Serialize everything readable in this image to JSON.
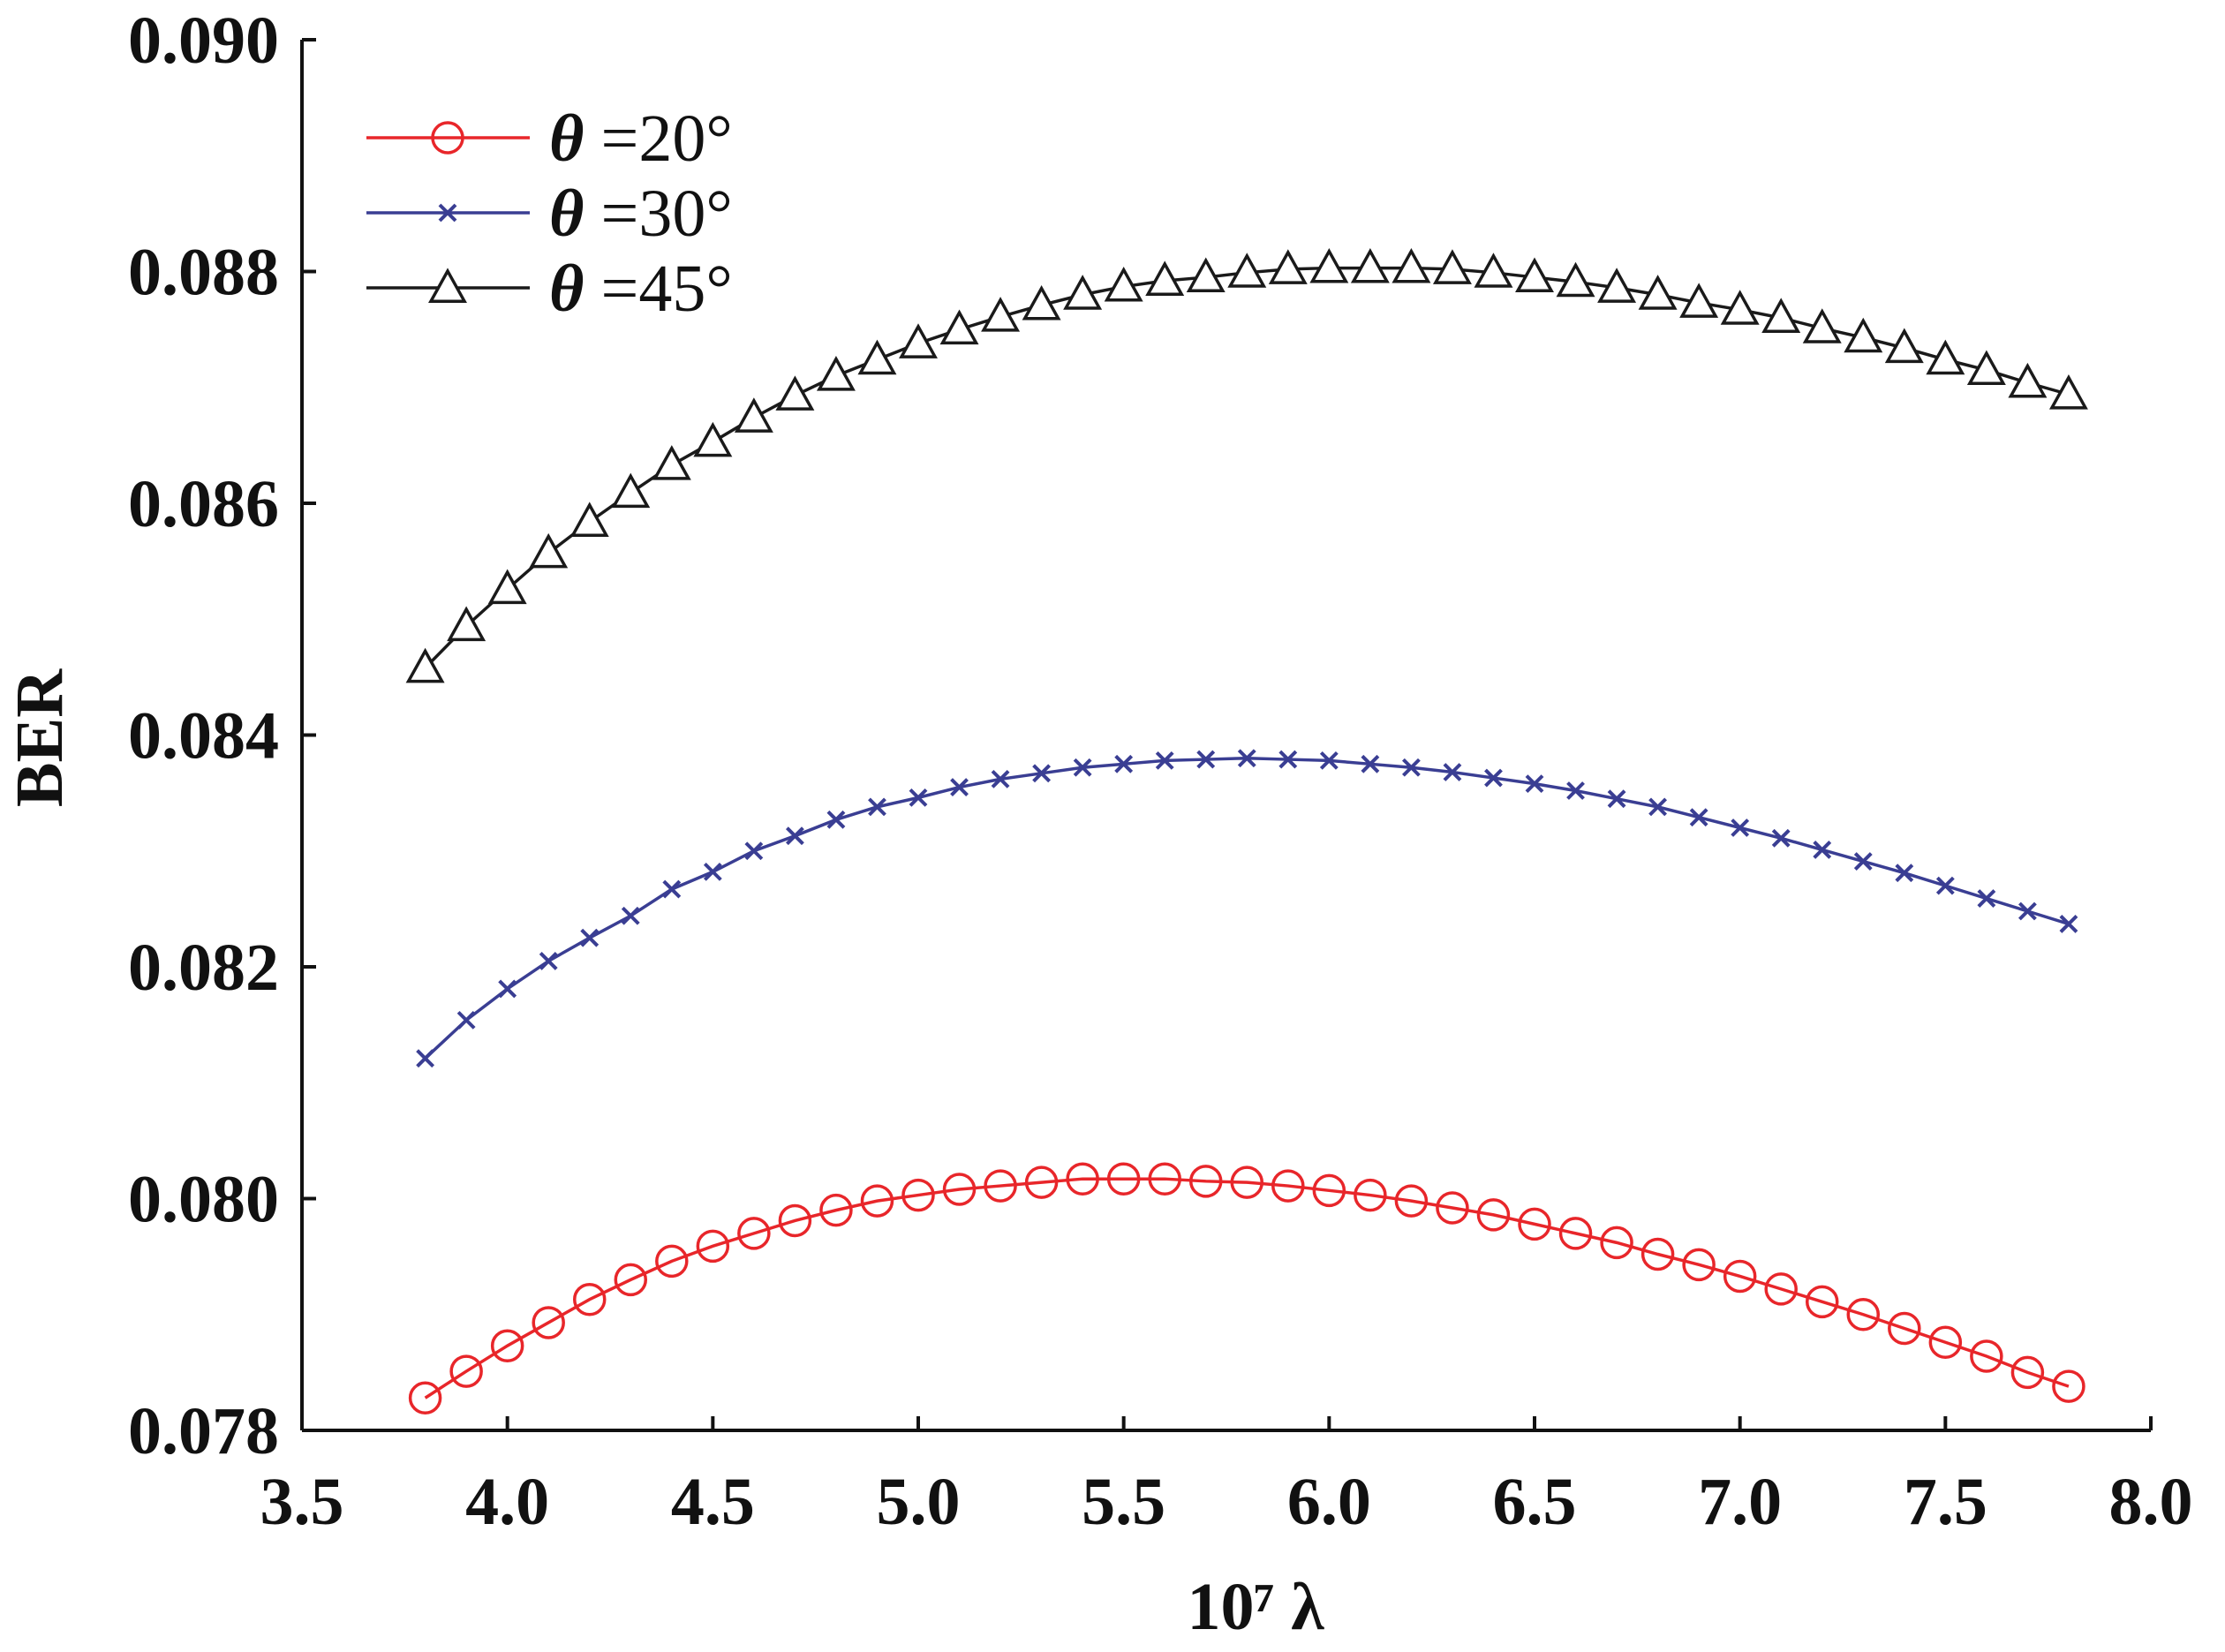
{
  "chart_data": {
    "type": "line",
    "title": "",
    "xlabel": "10⁷ λ",
    "ylabel": "BER",
    "xlim": [
      3.5,
      8.0
    ],
    "ylim": [
      0.078,
      0.09
    ],
    "xticks": [
      "3.5",
      "4.0",
      "4.5",
      "5.0",
      "5.5",
      "6.0",
      "6.5",
      "7.0",
      "7.5",
      "8.0"
    ],
    "yticks": [
      "0.078",
      "0.080",
      "0.082",
      "0.084",
      "0.086",
      "0.088",
      "0.090"
    ],
    "grid": false,
    "legend_position": "top-left",
    "x": [
      3.8,
      3.9,
      4.0,
      4.1,
      4.2,
      4.3,
      4.4,
      4.5,
      4.6,
      4.7,
      4.8,
      4.9,
      5.0,
      5.1,
      5.2,
      5.3,
      5.4,
      5.5,
      5.6,
      5.7,
      5.8,
      5.9,
      6.0,
      6.1,
      6.2,
      6.3,
      6.4,
      6.5,
      6.6,
      6.7,
      6.8,
      6.9,
      7.0,
      7.1,
      7.2,
      7.3,
      7.4,
      7.5,
      7.6,
      7.7,
      7.8
    ],
    "series": [
      {
        "name": "θ =20°",
        "theta": "θ",
        "rest": " =20°",
        "color": "#e8262a",
        "marker": "circle",
        "values": [
          0.07828,
          0.07851,
          0.07873,
          0.07893,
          0.07913,
          0.0793,
          0.07946,
          0.07959,
          0.0797,
          0.07981,
          0.0799,
          0.07998,
          0.08003,
          0.08008,
          0.08011,
          0.08014,
          0.08017,
          0.08017,
          0.08017,
          0.08015,
          0.08014,
          0.08011,
          0.08007,
          0.08003,
          0.07998,
          0.07992,
          0.07986,
          0.07978,
          0.0797,
          0.07962,
          0.07952,
          0.07943,
          0.07933,
          0.07922,
          0.07911,
          0.079,
          0.07888,
          0.07876,
          0.07864,
          0.0785,
          0.07838
        ]
      },
      {
        "name": "θ =30°",
        "theta": "θ",
        "rest": " =30°",
        "color": "#3a3e93",
        "marker": "x",
        "values": [
          0.08121,
          0.08154,
          0.08181,
          0.08205,
          0.08225,
          0.08244,
          0.08267,
          0.08282,
          0.083,
          0.08313,
          0.08327,
          0.08338,
          0.08346,
          0.08355,
          0.08362,
          0.08367,
          0.08372,
          0.08375,
          0.08378,
          0.08379,
          0.0838,
          0.08379,
          0.08378,
          0.08375,
          0.08372,
          0.08368,
          0.08363,
          0.08358,
          0.08352,
          0.08345,
          0.08338,
          0.08329,
          0.0832,
          0.08311,
          0.08301,
          0.08291,
          0.08281,
          0.0827,
          0.08259,
          0.08248,
          0.08237
        ]
      },
      {
        "name": "θ =45°",
        "theta": "θ",
        "rest": " =45°",
        "color": "#1a1a1a",
        "marker": "triangle",
        "values": [
          0.08458,
          0.08494,
          0.08526,
          0.08557,
          0.08584,
          0.08609,
          0.08633,
          0.08653,
          0.08674,
          0.08693,
          0.0871,
          0.08724,
          0.08738,
          0.0875,
          0.08761,
          0.08771,
          0.0878,
          0.08787,
          0.08792,
          0.08795,
          0.08799,
          0.08802,
          0.08803,
          0.08803,
          0.08803,
          0.08802,
          0.08799,
          0.08795,
          0.08791,
          0.08786,
          0.0878,
          0.08773,
          0.08767,
          0.0876,
          0.08751,
          0.08743,
          0.08734,
          0.08724,
          0.08715,
          0.08704,
          0.08694
        ]
      }
    ]
  }
}
